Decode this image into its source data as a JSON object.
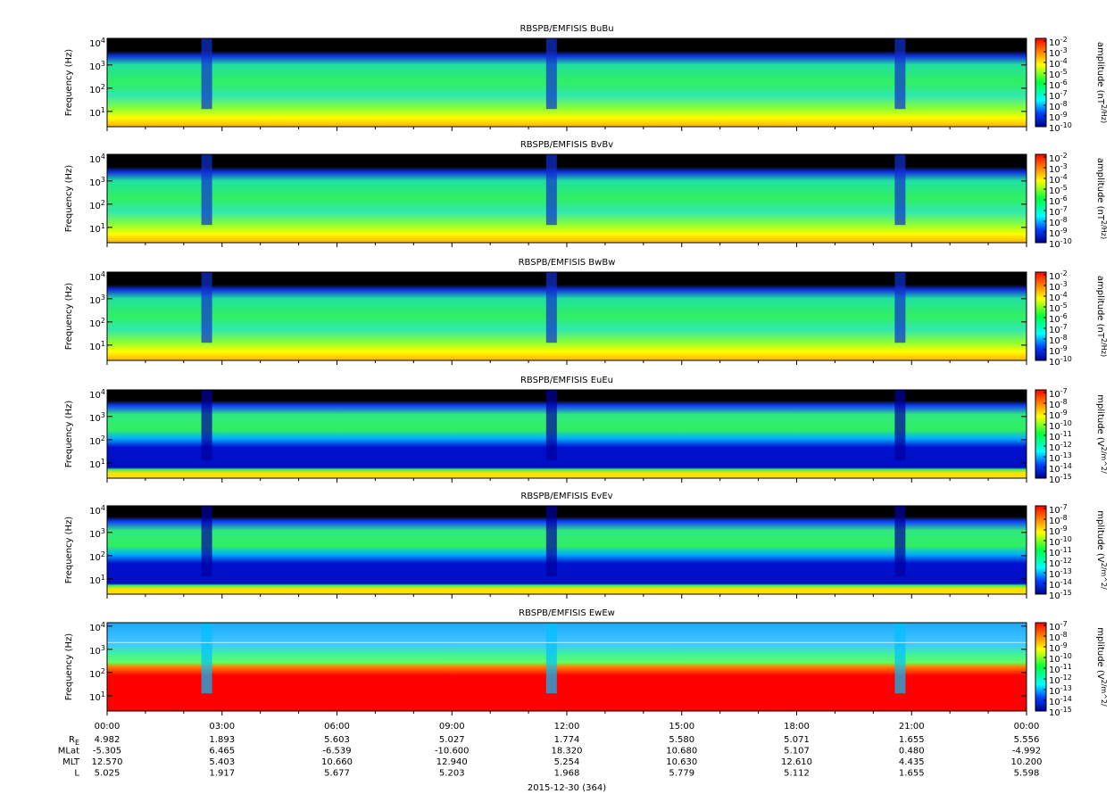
{
  "chart_data": [
    {
      "type": "spectrogram",
      "title": "RBSPB/EMFISIS  BuBu",
      "y_label": "Frequency (Hz)",
      "log_y": true,
      "ylim": [
        2.2,
        14000
      ],
      "yticks": [
        {
          "value": 10,
          "label": "10^1"
        },
        {
          "value": 100,
          "label": "10^2"
        },
        {
          "value": 1000,
          "label": "10^3"
        },
        {
          "value": 10000,
          "label": "10^4"
        }
      ],
      "colorbar_label": "amplitude (nT^2/Hz)",
      "clim": [
        1e-10,
        0.01
      ],
      "cticks": [
        {
          "value": 0.01,
          "label": "10^-2"
        },
        {
          "value": 0.001,
          "label": "10^-3"
        },
        {
          "value": 0.0001,
          "label": "10^-4"
        },
        {
          "value": 1e-05,
          "label": "10^-5"
        },
        {
          "value": 1e-06,
          "label": "10^-6"
        },
        {
          "value": 1e-07,
          "label": "10^-7"
        },
        {
          "value": 1e-08,
          "label": "10^-8"
        },
        {
          "value": 1e-09,
          "label": "10^-9"
        },
        {
          "value": 1e-10,
          "label": "10^-10"
        }
      ]
    },
    {
      "type": "spectrogram",
      "title": "RBSPB/EMFISIS  BvBv",
      "y_label": "Frequency (Hz)",
      "log_y": true,
      "ylim": [
        2.2,
        14000
      ],
      "yticks": [
        {
          "value": 10,
          "label": "10^1"
        },
        {
          "value": 100,
          "label": "10^2"
        },
        {
          "value": 1000,
          "label": "10^3"
        },
        {
          "value": 10000,
          "label": "10^4"
        }
      ],
      "colorbar_label": "amplitude (nT^2/Hz)",
      "clim": [
        1e-10,
        0.01
      ],
      "cticks": [
        {
          "value": 0.01,
          "label": "10^-2"
        },
        {
          "value": 0.001,
          "label": "10^-3"
        },
        {
          "value": 0.0001,
          "label": "10^-4"
        },
        {
          "value": 1e-05,
          "label": "10^-5"
        },
        {
          "value": 1e-06,
          "label": "10^-6"
        },
        {
          "value": 1e-07,
          "label": "10^-7"
        },
        {
          "value": 1e-08,
          "label": "10^-8"
        },
        {
          "value": 1e-09,
          "label": "10^-9"
        },
        {
          "value": 1e-10,
          "label": "10^-10"
        }
      ]
    },
    {
      "type": "spectrogram",
      "title": "RBSPB/EMFISIS  BwBw",
      "y_label": "Frequency (Hz)",
      "log_y": true,
      "ylim": [
        2.2,
        14000
      ],
      "yticks": [
        {
          "value": 10,
          "label": "10^1"
        },
        {
          "value": 100,
          "label": "10^2"
        },
        {
          "value": 1000,
          "label": "10^3"
        },
        {
          "value": 10000,
          "label": "10^4"
        }
      ],
      "colorbar_label": "amplitude (nT^2/Hz)",
      "clim": [
        1e-10,
        0.01
      ],
      "cticks": [
        {
          "value": 0.01,
          "label": "10^-2"
        },
        {
          "value": 0.001,
          "label": "10^-3"
        },
        {
          "value": 0.0001,
          "label": "10^-4"
        },
        {
          "value": 1e-05,
          "label": "10^-5"
        },
        {
          "value": 1e-06,
          "label": "10^-6"
        },
        {
          "value": 1e-07,
          "label": "10^-7"
        },
        {
          "value": 1e-08,
          "label": "10^-8"
        },
        {
          "value": 1e-09,
          "label": "10^-9"
        },
        {
          "value": 1e-10,
          "label": "10^-10"
        }
      ]
    },
    {
      "type": "spectrogram",
      "title": "RBSPB/EMFISIS  EuEu",
      "y_label": "Frequency (Hz)",
      "log_y": true,
      "ylim": [
        2.2,
        14000
      ],
      "yticks": [
        {
          "value": 10,
          "label": "10^1"
        },
        {
          "value": 100,
          "label": "10^2"
        },
        {
          "value": 1000,
          "label": "10^3"
        },
        {
          "value": 10000,
          "label": "10^4"
        }
      ],
      "colorbar_label": "mplitude (V^2/m^2/",
      "clim": [
        1e-15,
        1e-07
      ],
      "cticks": [
        {
          "value": 1e-07,
          "label": "10^-7"
        },
        {
          "value": 1e-08,
          "label": "10^-8"
        },
        {
          "value": 1e-09,
          "label": "10^-9"
        },
        {
          "value": 1e-10,
          "label": "10^-10"
        },
        {
          "value": 1e-11,
          "label": "10^-11"
        },
        {
          "value": 1e-12,
          "label": "10^-12"
        },
        {
          "value": 1e-13,
          "label": "10^-13"
        },
        {
          "value": 1e-14,
          "label": "10^-14"
        },
        {
          "value": 1e-15,
          "label": "10^-15"
        }
      ]
    },
    {
      "type": "spectrogram",
      "title": "RBSPB/EMFISIS  EvEv",
      "y_label": "Frequency (Hz)",
      "log_y": true,
      "ylim": [
        2.2,
        14000
      ],
      "yticks": [
        {
          "value": 10,
          "label": "10^1"
        },
        {
          "value": 100,
          "label": "10^2"
        },
        {
          "value": 1000,
          "label": "10^3"
        },
        {
          "value": 10000,
          "label": "10^4"
        }
      ],
      "colorbar_label": "mplitude (V^2/m^2/",
      "clim": [
        1e-15,
        1e-07
      ],
      "cticks": [
        {
          "value": 1e-07,
          "label": "10^-7"
        },
        {
          "value": 1e-08,
          "label": "10^-8"
        },
        {
          "value": 1e-09,
          "label": "10^-9"
        },
        {
          "value": 1e-10,
          "label": "10^-10"
        },
        {
          "value": 1e-11,
          "label": "10^-11"
        },
        {
          "value": 1e-12,
          "label": "10^-12"
        },
        {
          "value": 1e-13,
          "label": "10^-13"
        },
        {
          "value": 1e-14,
          "label": "10^-14"
        },
        {
          "value": 1e-15,
          "label": "10^-15"
        }
      ]
    },
    {
      "type": "spectrogram",
      "title": "RBSPB/EMFISIS  EwEw",
      "y_label": "Frequency (Hz)",
      "log_y": true,
      "ylim": [
        2.2,
        14000
      ],
      "yticks": [
        {
          "value": 10,
          "label": "10^1"
        },
        {
          "value": 100,
          "label": "10^2"
        },
        {
          "value": 1000,
          "label": "10^3"
        },
        {
          "value": 10000,
          "label": "10^4"
        }
      ],
      "colorbar_label": "mplitude (V^2/m^2/",
      "clim": [
        1e-15,
        1e-07
      ],
      "cticks": [
        {
          "value": 1e-07,
          "label": "10^-7"
        },
        {
          "value": 1e-08,
          "label": "10^-8"
        },
        {
          "value": 1e-09,
          "label": "10^-9"
        },
        {
          "value": 1e-10,
          "label": "10^-10"
        },
        {
          "value": 1e-11,
          "label": "10^-11"
        },
        {
          "value": 1e-12,
          "label": "10^-12"
        },
        {
          "value": 1e-13,
          "label": "10^-13"
        },
        {
          "value": 1e-14,
          "label": "10^-14"
        },
        {
          "value": 1e-15,
          "label": "10^-15"
        }
      ]
    }
  ],
  "time_axis": {
    "xlim": [
      0,
      24
    ],
    "xticks": [
      {
        "value": 0,
        "label": "00:00"
      },
      {
        "value": 3,
        "label": "03:00"
      },
      {
        "value": 6,
        "label": "06:00"
      },
      {
        "value": 9,
        "label": "09:00"
      },
      {
        "value": 12,
        "label": "12:00"
      },
      {
        "value": 15,
        "label": "15:00"
      },
      {
        "value": 18,
        "label": "18:00"
      },
      {
        "value": 21,
        "label": "21:00"
      },
      {
        "value": 24,
        "label": "00:00"
      }
    ],
    "date": "2015-12-30 (364)"
  },
  "ephemeris": [
    {
      "label": "R_E",
      "values": [
        "4.982",
        "1.893",
        "5.603",
        "5.027",
        "1.774",
        "5.580",
        "5.071",
        "1.655",
        "5.556"
      ]
    },
    {
      "label": "MLat",
      "values": [
        "-5.305",
        "6.465",
        "-6.539",
        "-10.600",
        "18.320",
        "10.680",
        "5.107",
        "0.480",
        "-4.992"
      ]
    },
    {
      "label": "MLT",
      "values": [
        "12.570",
        "5.403",
        "10.660",
        "12.940",
        "5.254",
        "10.630",
        "12.610",
        "4.435",
        "10.200"
      ]
    },
    {
      "label": "L",
      "values": [
        "5.025",
        "1.917",
        "5.677",
        "5.203",
        "1.968",
        "5.779",
        "5.112",
        "1.655",
        "5.598"
      ]
    }
  ]
}
